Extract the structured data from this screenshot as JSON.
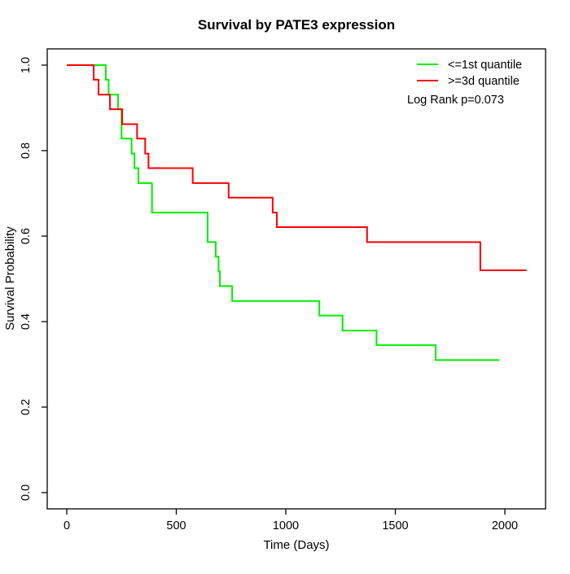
{
  "chart_data": {
    "type": "line",
    "subtype": "kaplan-meier-step",
    "title": "Survival by PATE3 expression",
    "xlabel": "Time (Days)",
    "ylabel": "Survival Probability",
    "xlim": [
      0,
      2100
    ],
    "ylim": [
      0,
      1
    ],
    "x_ticks": [
      0,
      500,
      1000,
      1500,
      2000
    ],
    "y_ticks": [
      0.0,
      0.2,
      0.4,
      0.6,
      0.8,
      1.0
    ],
    "grid": false,
    "legend_position": "top-right",
    "legend": [
      "<=1st quantile",
      ">=3d quantile"
    ],
    "annotation": "Log Rank p=0.073",
    "colors": {
      "low_group": "#00ee00",
      "high_group": "#ff0000",
      "axis": "#000000",
      "background": "#ffffff"
    },
    "series": [
      {
        "name": "<=1st quantile",
        "color": "#00ee00",
        "points": [
          [
            0,
            1.0
          ],
          [
            178,
            0.966
          ],
          [
            191,
            0.931
          ],
          [
            234,
            0.897
          ],
          [
            250,
            0.828
          ],
          [
            296,
            0.793
          ],
          [
            309,
            0.759
          ],
          [
            327,
            0.724
          ],
          [
            389,
            0.655
          ],
          [
            643,
            0.586
          ],
          [
            680,
            0.552
          ],
          [
            693,
            0.517
          ],
          [
            699,
            0.483
          ],
          [
            755,
            0.448
          ],
          [
            1153,
            0.414
          ],
          [
            1259,
            0.379
          ],
          [
            1414,
            0.345
          ],
          [
            1684,
            0.31
          ]
        ],
        "end_time": 1975
      },
      {
        "name": ">=3d quantile",
        "color": "#ff0000",
        "points": [
          [
            0,
            1.0
          ],
          [
            123,
            0.966
          ],
          [
            145,
            0.931
          ],
          [
            197,
            0.897
          ],
          [
            253,
            0.862
          ],
          [
            321,
            0.828
          ],
          [
            358,
            0.793
          ],
          [
            373,
            0.759
          ],
          [
            575,
            0.724
          ],
          [
            739,
            0.69
          ],
          [
            940,
            0.655
          ],
          [
            959,
            0.621
          ],
          [
            1371,
            0.586
          ],
          [
            1888,
            0.52
          ]
        ],
        "end_time": 2099
      }
    ]
  }
}
